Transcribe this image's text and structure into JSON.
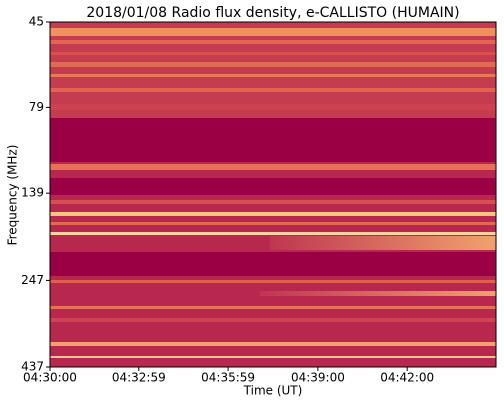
{
  "chart_data": {
    "type": "spectrogram",
    "title": "2018/01/08  Radio flux density, e-CALLISTO (HUMAIN)",
    "xlabel": "Time (UT)",
    "ylabel": "Frequency (MHz)",
    "xlim": [
      16200,
      17099
    ],
    "xticks": [
      {
        "value": 16200,
        "label": "04:30:00"
      },
      {
        "value": 16379,
        "label": "04:32:59"
      },
      {
        "value": 16559,
        "label": "04:35:59"
      },
      {
        "value": 16740,
        "label": "04:39:00"
      },
      {
        "value": 16920,
        "label": "04:42:00"
      }
    ],
    "ylim": [
      45,
      437
    ],
    "yticks": [
      45,
      79,
      139,
      247,
      437
    ],
    "ylog": true,
    "y_inverted": true
  }
}
